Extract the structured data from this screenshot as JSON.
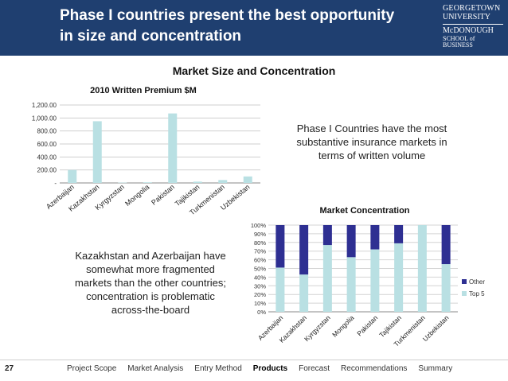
{
  "slide": {
    "title_line1": "Phase I countries present the best opportunity",
    "title_line2": "in size and concentration",
    "section_title": "Market Size and Concentration",
    "page_number": "27",
    "colors": {
      "header_bg": "#1f3f70",
      "bar_light": "#b9e0e3",
      "bar_dark": "#2e2f92"
    }
  },
  "logo": {
    "line1": "GEORGETOWN",
    "line2": "UNIVERSITY",
    "line3": "McDONOUGH",
    "line4": "SCHOOL of BUSINESS"
  },
  "notes": {
    "right": "Phase I Countries have the most substantive insurance markets in terms of written volume",
    "left": "Kazakhstan and Azerbaijan have somewhat more fragmented markets than the other countries; concentration is problematic across-the-board"
  },
  "nav": {
    "items": [
      "Project Scope",
      "Market Analysis",
      "Entry Method",
      "Products",
      "Forecast",
      "Recommendations",
      "Summary"
    ],
    "active": "Products"
  },
  "chart_data": [
    {
      "type": "bar",
      "title": "2010 Written Premium $M",
      "categories": [
        "Azerbaijan",
        "Kazakhstan",
        "Kyrgyzstan",
        "Mongolia",
        "Pakistan",
        "Tajikistan",
        "Turkmenistan",
        "Uzbekistan"
      ],
      "values": [
        200,
        950,
        5,
        10,
        1070,
        20,
        45,
        100
      ],
      "ylim": [
        0,
        1200
      ],
      "yticks": [
        0,
        200,
        400,
        600,
        800,
        1000,
        1200
      ],
      "ytick_labels": [
        "-",
        "200.00",
        "400.00",
        "600.00",
        "800.00",
        "1,000.00",
        "1,200.00"
      ],
      "grid": true,
      "xlabel": "",
      "ylabel": ""
    },
    {
      "type": "bar",
      "stacked": true,
      "title": "Market Concentration",
      "categories": [
        "Azerbaijan",
        "Kazakhstan",
        "Kyrgyzstan",
        "Mongolia",
        "Pakistan",
        "Tajikistan",
        "Turkmenistan",
        "Uzbekistan"
      ],
      "series": [
        {
          "name": "Top 5",
          "values": [
            51,
            43,
            77,
            63,
            72,
            79,
            100,
            55
          ]
        },
        {
          "name": "Other",
          "values": [
            49,
            57,
            23,
            37,
            28,
            21,
            0,
            45
          ]
        }
      ],
      "ylim": [
        0,
        100
      ],
      "yticks": [
        0,
        10,
        20,
        30,
        40,
        50,
        60,
        70,
        80,
        90,
        100
      ],
      "ytick_labels": [
        "0%",
        "10%",
        "20%",
        "30%",
        "40%",
        "50%",
        "60%",
        "70%",
        "80%",
        "90%",
        "100%"
      ],
      "legend": [
        "Other",
        "Top 5"
      ],
      "legend_position": "right",
      "grid": true
    }
  ]
}
